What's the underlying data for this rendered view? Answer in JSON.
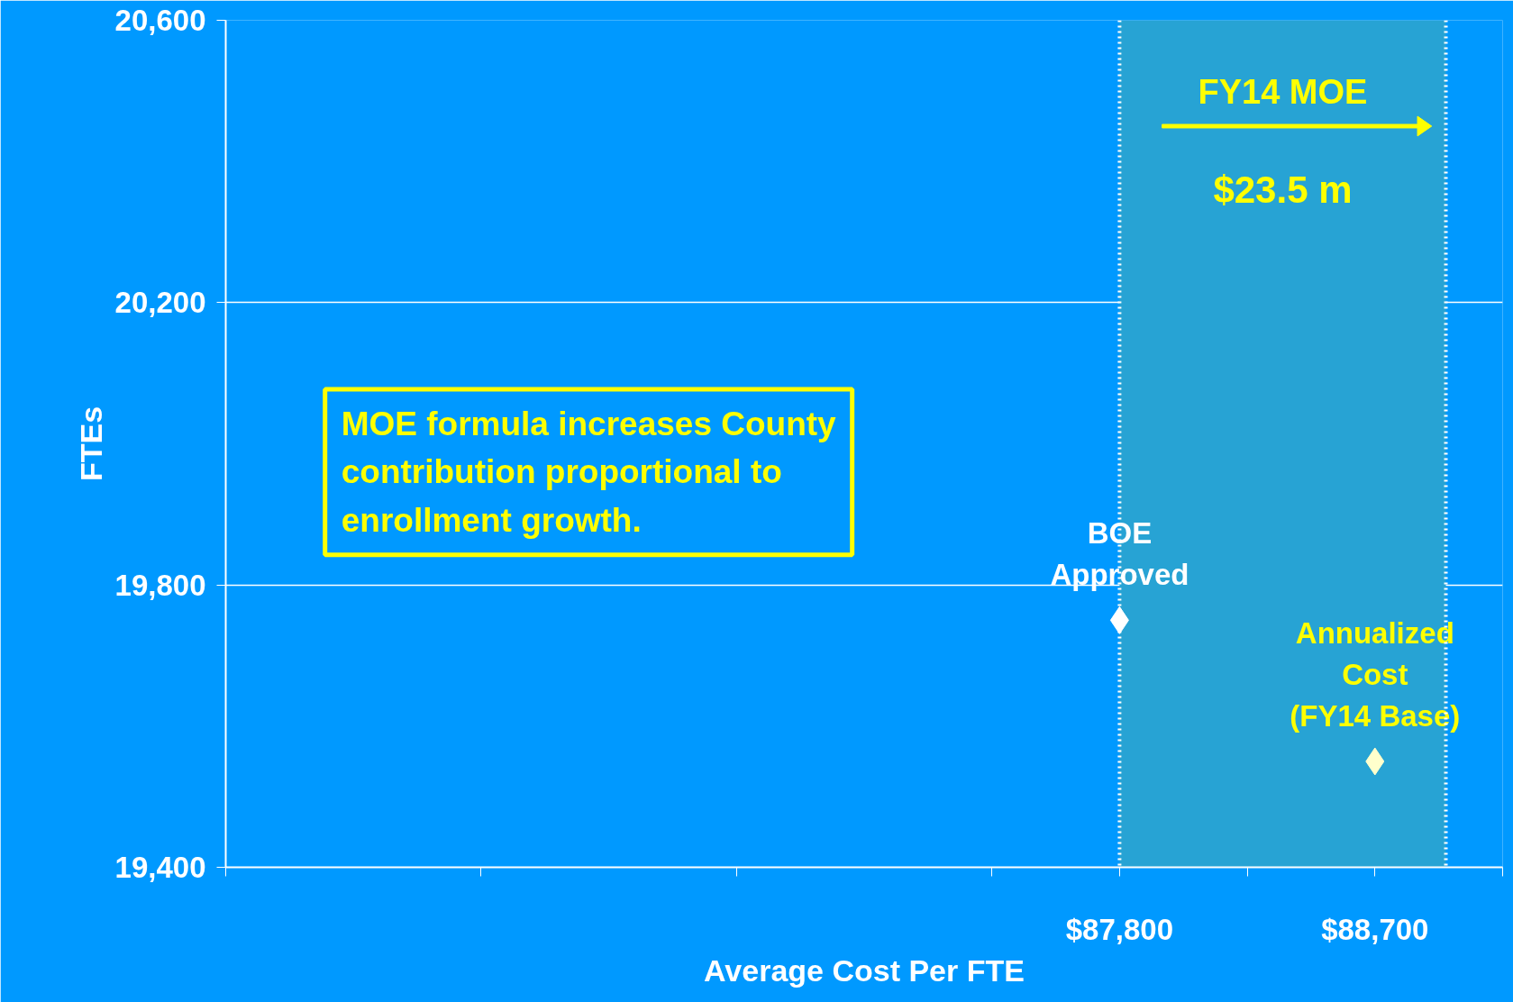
{
  "chart_data": {
    "type": "scatter",
    "xlabel": "Average Cost Per FTE",
    "ylabel": "FTEs",
    "x": [
      87800,
      88700
    ],
    "values": [
      19750,
      19550
    ],
    "colors": [
      "#ffffff",
      "#ffffcc"
    ],
    "marker": "diamond",
    "xlim": [
      84650,
      89150
    ],
    "xticks": [
      {
        "value": 84650,
        "label": null
      },
      {
        "value": 85550,
        "label": null
      },
      {
        "value": 86450,
        "label": null
      },
      {
        "value": 87350,
        "label": null
      },
      {
        "value": 87800,
        "label": "$87,800"
      },
      {
        "value": 88250,
        "label": null
      },
      {
        "value": 88700,
        "label": "$88,700"
      },
      {
        "value": 89150,
        "label": null
      }
    ],
    "ylim": [
      19400,
      20600
    ],
    "yticks": [
      {
        "value": 19400,
        "label": "19,400"
      },
      {
        "value": 19800,
        "label": "19,800"
      },
      {
        "value": 20200,
        "label": "20,200"
      },
      {
        "value": 20600,
        "label": "20,600"
      }
    ],
    "grid": "y",
    "ref_lines": [
      {
        "axis": "x",
        "value": 87800,
        "color": "#ffffff",
        "line_style": "dotted"
      },
      {
        "axis": "x",
        "value": 88950,
        "color": "#ffffff",
        "line_style": "dotted"
      }
    ],
    "bands": [
      {
        "axis": "x",
        "from": 87800,
        "to": 88950,
        "label": "FY14 MOE",
        "color": "#27a3d4"
      }
    ],
    "annotations": [
      "$23.5 m",
      "MOE formula increases County\ncontribution proportional to\nenrollment growth.",
      {
        "text": "BOE\nApproved",
        "x": 87800,
        "y": 19750
      },
      {
        "text": "Annualized\nCost\n(FY14 Base)",
        "x": 88700,
        "y": 19550
      }
    ]
  }
}
